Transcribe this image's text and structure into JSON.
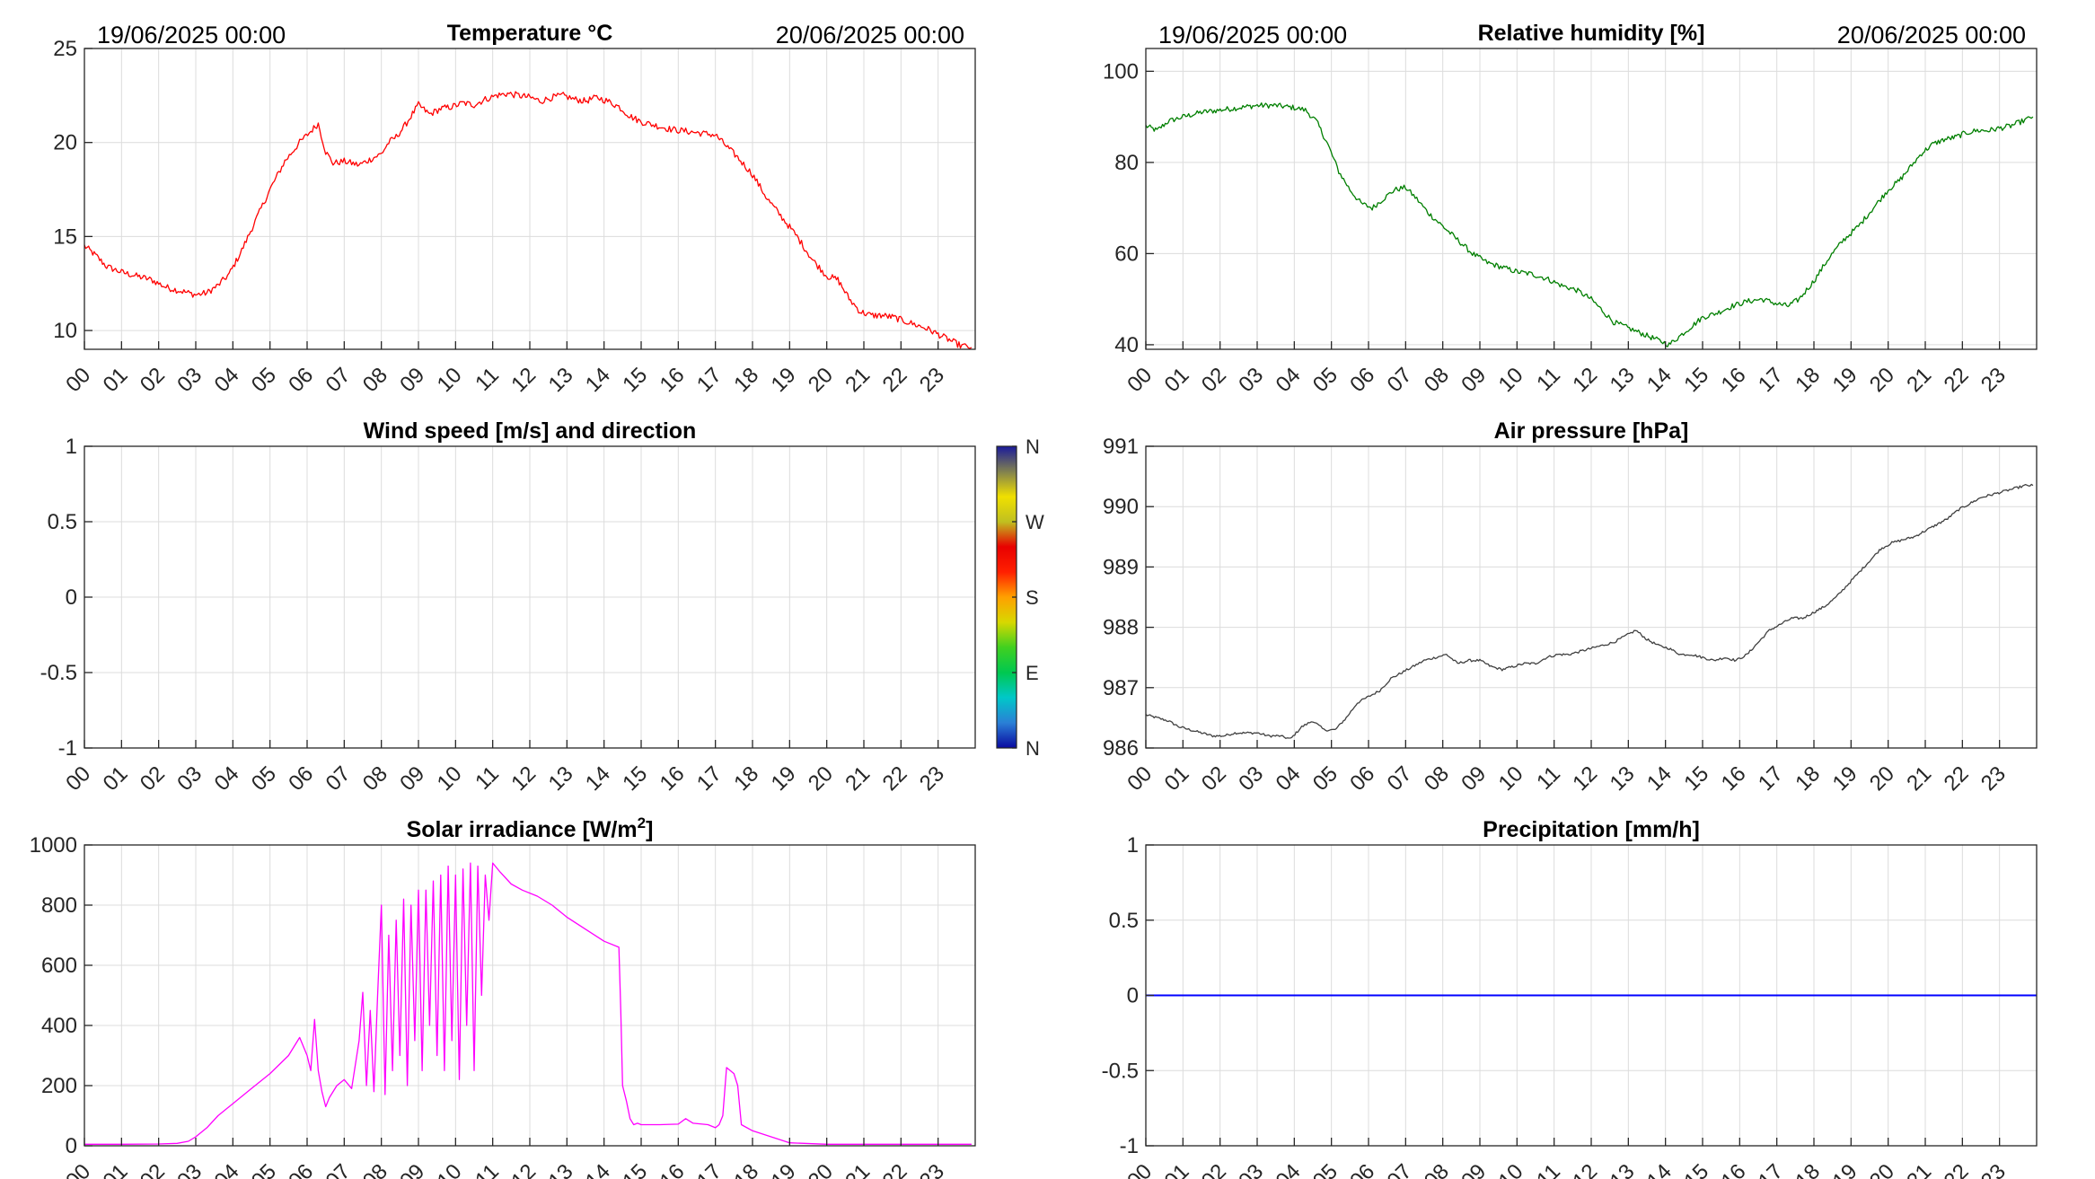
{
  "chart_data": [
    {
      "id": "temp",
      "type": "line",
      "title": "Temperature °C",
      "date_left": "19/06/2025 00:00",
      "date_right": "20/06/2025 00:00",
      "ylim": [
        9,
        25
      ],
      "yticks": [
        10,
        15,
        20,
        25
      ],
      "ytick_labels": [
        "10",
        "15",
        "20",
        "25"
      ],
      "grid": true,
      "color": "#ff0000",
      "series": [
        {
          "x": [
            0,
            0.3,
            0.6,
            1.0,
            1.4,
            1.8,
            2.2,
            2.6,
            3.0,
            3.3,
            3.6,
            3.9,
            4.2,
            4.6,
            5.0,
            5.4,
            5.8,
            6.1,
            6.3,
            6.5,
            6.7,
            7.0,
            7.4,
            7.8,
            8.0,
            8.2,
            8.4,
            8.6,
            8.8,
            9.0,
            9.3,
            9.6,
            9.9,
            10.2,
            10.5,
            10.8,
            11.1,
            11.4,
            11.7,
            12.0,
            12.3,
            12.6,
            12.9,
            13.2,
            13.5,
            13.8,
            14.1,
            14.4,
            14.7,
            15.0,
            15.4,
            15.8,
            16.2,
            16.6,
            17.0,
            17.3,
            17.6,
            18.0,
            18.4,
            18.8,
            19.2,
            19.6,
            20.0,
            20.3,
            20.6,
            20.9,
            21.2,
            21.5,
            21.8,
            22.1,
            22.4,
            22.7,
            23.0,
            23.3,
            23.6,
            23.9
          ],
          "y": [
            14.5,
            14.0,
            13.4,
            13.1,
            12.9,
            12.7,
            12.3,
            12.1,
            11.9,
            12.0,
            12.4,
            13.0,
            14.1,
            15.8,
            17.5,
            19.0,
            20.0,
            20.6,
            21.0,
            19.5,
            18.9,
            19.0,
            18.8,
            19.2,
            19.4,
            20.0,
            20.3,
            20.8,
            21.4,
            22.0,
            21.5,
            21.8,
            21.9,
            22.1,
            22.0,
            22.3,
            22.5,
            22.6,
            22.5,
            22.4,
            22.2,
            22.4,
            22.5,
            22.3,
            22.2,
            22.4,
            22.2,
            21.9,
            21.4,
            21.1,
            20.9,
            20.7,
            20.6,
            20.5,
            20.4,
            19.8,
            19.2,
            18.3,
            17.0,
            16.0,
            15.0,
            13.8,
            12.9,
            12.7,
            11.7,
            11.0,
            10.8,
            10.8,
            10.7,
            10.5,
            10.3,
            10.1,
            9.8,
            9.5,
            9.2,
            9.1
          ]
        }
      ]
    },
    {
      "id": "humidity",
      "type": "line",
      "title": "Relative humidity [%]",
      "date_left": "19/06/2025 00:00",
      "date_right": "20/06/2025 00:00",
      "ylim": [
        39,
        105
      ],
      "yticks": [
        40,
        60,
        80,
        100
      ],
      "ytick_labels": [
        "40",
        "60",
        "80",
        "100"
      ],
      "grid": true,
      "color": "#007f00",
      "series": [
        {
          "x": [
            0,
            0.3,
            0.6,
            1.0,
            1.5,
            2.0,
            2.5,
            3.0,
            3.5,
            4.0,
            4.3,
            4.6,
            4.9,
            5.2,
            5.5,
            5.8,
            6.1,
            6.4,
            6.7,
            7.0,
            7.3,
            7.6,
            8.0,
            8.4,
            8.8,
            9.2,
            9.6,
            10.0,
            10.4,
            10.8,
            11.2,
            11.6,
            12.0,
            12.3,
            12.6,
            12.9,
            13.2,
            13.5,
            13.8,
            14.1,
            14.4,
            14.7,
            15.0,
            15.4,
            15.8,
            16.2,
            16.6,
            17.0,
            17.3,
            17.6,
            18.0,
            18.4,
            18.8,
            19.2,
            19.6,
            20.0,
            20.3,
            20.6,
            20.9,
            21.2,
            21.5,
            21.8,
            22.1,
            22.4,
            22.7,
            23.0,
            23.3,
            23.6,
            23.9
          ],
          "y": [
            88,
            87,
            89,
            90,
            91,
            91.5,
            92,
            92.5,
            92.5,
            92,
            91.5,
            89,
            84,
            78,
            74,
            71,
            70,
            72,
            74,
            74.5,
            72,
            69,
            66,
            63,
            60,
            58,
            57,
            56,
            55.5,
            54.5,
            53,
            52,
            50,
            47.5,
            45,
            44,
            43,
            42,
            41,
            40,
            42,
            44,
            46,
            47,
            48.5,
            49.5,
            50,
            49,
            48.5,
            50,
            54,
            59,
            63,
            66,
            70,
            74,
            76,
            79,
            82,
            84,
            85,
            85.5,
            86.5,
            87,
            87,
            87.5,
            88,
            89,
            90
          ]
        }
      ]
    },
    {
      "id": "wind",
      "type": "scatter",
      "title": "Wind speed [m/s] and direction",
      "ylim": [
        -1,
        1
      ],
      "yticks": [
        -1,
        -0.5,
        0,
        0.5,
        1
      ],
      "ytick_labels": [
        "-1",
        "-0.5",
        "0",
        "0.5",
        "1"
      ],
      "grid": true,
      "colorbar": {
        "labels": [
          "N",
          "W",
          "S",
          "E",
          "N"
        ],
        "colors": [
          "#0a0aa0",
          "#2a7fd6",
          "#00c8c8",
          "#00c850",
          "#40d020",
          "#d8d800",
          "#ffa000",
          "#ff2000",
          "#e80000",
          "#c0c020",
          "#f0e000",
          "#808050",
          "#1a1a9a"
        ]
      },
      "series": []
    },
    {
      "id": "pressure",
      "type": "line",
      "title": "Air pressure [hPa]",
      "ylim": [
        986,
        991
      ],
      "yticks": [
        986,
        987,
        988,
        989,
        990,
        991
      ],
      "ytick_labels": [
        "986",
        "987",
        "988",
        "989",
        "990",
        "991"
      ],
      "grid": true,
      "color": "#404040",
      "series": [
        {
          "x": [
            0,
            0.3,
            0.6,
            0.9,
            1.2,
            1.5,
            1.8,
            2.1,
            2.4,
            2.7,
            3.0,
            3.3,
            3.6,
            3.9,
            4.2,
            4.5,
            4.8,
            5.1,
            5.4,
            5.7,
            6.0,
            6.3,
            6.6,
            6.9,
            7.2,
            7.5,
            7.8,
            8.1,
            8.4,
            8.7,
            9.0,
            9.3,
            9.6,
            9.9,
            10.2,
            10.5,
            10.8,
            11.1,
            11.4,
            11.7,
            12.0,
            12.3,
            12.6,
            12.9,
            13.2,
            13.5,
            13.8,
            14.1,
            14.4,
            14.7,
            15.0,
            15.3,
            15.6,
            15.9,
            16.2,
            16.5,
            16.8,
            17.1,
            17.4,
            17.7,
            18.0,
            18.3,
            18.6,
            18.9,
            19.2,
            19.5,
            19.8,
            20.1,
            20.4,
            20.7,
            21.0,
            21.3,
            21.6,
            21.9,
            22.2,
            22.5,
            22.8,
            23.1,
            23.4,
            23.7,
            23.9
          ],
          "y": [
            986.55,
            986.5,
            986.45,
            986.35,
            986.3,
            986.25,
            986.2,
            986.2,
            986.25,
            986.25,
            986.25,
            986.2,
            986.2,
            986.15,
            986.35,
            986.45,
            986.3,
            986.3,
            986.5,
            986.75,
            986.85,
            986.95,
            987.15,
            987.25,
            987.35,
            987.45,
            987.5,
            987.55,
            987.4,
            987.45,
            987.45,
            987.35,
            987.3,
            987.35,
            987.4,
            987.4,
            987.5,
            987.55,
            987.55,
            987.6,
            987.65,
            987.7,
            987.75,
            987.85,
            987.95,
            987.8,
            987.7,
            987.65,
            987.55,
            987.55,
            987.5,
            987.45,
            987.5,
            987.45,
            987.55,
            987.75,
            987.95,
            988.05,
            988.15,
            988.15,
            988.25,
            988.35,
            988.5,
            988.7,
            988.9,
            989.1,
            989.3,
            989.4,
            989.45,
            989.5,
            989.6,
            989.7,
            989.8,
            989.95,
            990.05,
            990.15,
            990.2,
            990.25,
            990.3,
            990.35,
            990.35
          ]
        }
      ]
    },
    {
      "id": "solar",
      "type": "line",
      "title": "Solar irradiance [W/m",
      "title_sup": "2",
      "title_end": "]",
      "ylim": [
        0,
        1000
      ],
      "yticks": [
        0,
        200,
        400,
        600,
        800,
        1000
      ],
      "ytick_labels": [
        "0",
        "200",
        "400",
        "600",
        "800",
        "1000"
      ],
      "grid": true,
      "color": "#ff00ff",
      "series": [
        {
          "x": [
            0,
            1.0,
            2.0,
            2.5,
            2.8,
            3.0,
            3.3,
            3.6,
            4.0,
            4.5,
            5.0,
            5.5,
            5.8,
            6.0,
            6.1,
            6.2,
            6.3,
            6.4,
            6.5,
            6.6,
            6.8,
            7.0,
            7.2,
            7.4,
            7.5,
            7.6,
            7.7,
            7.8,
            7.9,
            8.0,
            8.1,
            8.2,
            8.3,
            8.4,
            8.5,
            8.6,
            8.7,
            8.8,
            8.9,
            9.0,
            9.1,
            9.2,
            9.3,
            9.4,
            9.5,
            9.6,
            9.7,
            9.8,
            9.9,
            10.0,
            10.1,
            10.2,
            10.3,
            10.4,
            10.5,
            10.6,
            10.7,
            10.8,
            10.9,
            11.0,
            11.2,
            11.5,
            11.8,
            12.2,
            12.6,
            13.0,
            13.5,
            14.0,
            14.4,
            14.45,
            14.5,
            14.6,
            14.7,
            14.8,
            14.9,
            15.0,
            15.5,
            16.0,
            16.2,
            16.4,
            16.8,
            17.0,
            17.1,
            17.2,
            17.3,
            17.5,
            17.6,
            17.7,
            18.0,
            18.5,
            19.0,
            20.0,
            21.0,
            22.0,
            23.0,
            23.9
          ],
          "y": [
            5,
            5,
            6,
            8,
            15,
            30,
            60,
            100,
            140,
            190,
            240,
            300,
            360,
            300,
            250,
            420,
            250,
            180,
            130,
            160,
            200,
            220,
            190,
            350,
            510,
            200,
            450,
            180,
            500,
            800,
            170,
            700,
            250,
            750,
            300,
            820,
            200,
            800,
            350,
            850,
            250,
            850,
            400,
            880,
            300,
            900,
            250,
            930,
            350,
            900,
            220,
            920,
            400,
            940,
            250,
            930,
            500,
            900,
            750,
            940,
            910,
            870,
            850,
            830,
            800,
            760,
            720,
            680,
            660,
            450,
            200,
            150,
            90,
            70,
            75,
            70,
            70,
            72,
            90,
            75,
            70,
            60,
            70,
            100,
            260,
            240,
            200,
            70,
            50,
            30,
            10,
            5,
            5,
            5,
            5,
            5
          ]
        }
      ]
    },
    {
      "id": "precip",
      "type": "line",
      "title": "Precipitation [mm/h]",
      "ylim": [
        -1,
        1
      ],
      "yticks": [
        -1,
        -0.5,
        0,
        0.5,
        1
      ],
      "ytick_labels": [
        "-1",
        "-0.5",
        "0",
        "0.5",
        "1"
      ],
      "grid": true,
      "color": "#0000ff",
      "series": [
        {
          "x": [
            0,
            24
          ],
          "y": [
            0,
            0
          ]
        }
      ]
    }
  ],
  "hour_ticks": [
    "00",
    "01",
    "02",
    "03",
    "04",
    "05",
    "06",
    "07",
    "08",
    "09",
    "10",
    "11",
    "12",
    "13",
    "14",
    "15",
    "16",
    "17",
    "18",
    "19",
    "20",
    "21",
    "22",
    "23"
  ]
}
